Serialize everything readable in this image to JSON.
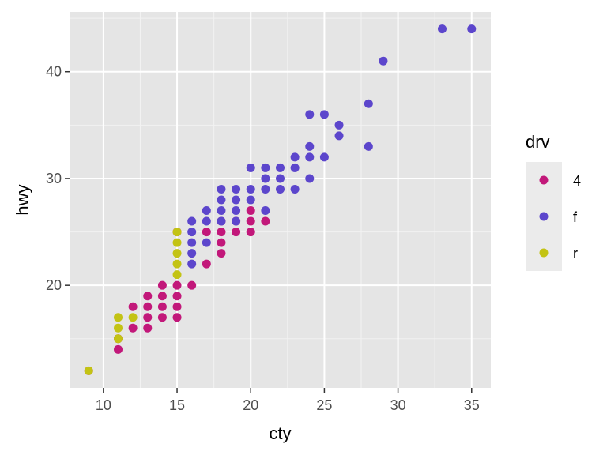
{
  "chart_data": {
    "type": "scatter",
    "title": "",
    "xlabel": "cty",
    "ylabel": "hwy",
    "xlim": [
      7.7,
      36.3
    ],
    "ylim": [
      10.4,
      45.6
    ],
    "x_ticks": [
      10,
      15,
      20,
      25,
      30,
      35
    ],
    "y_ticks": [
      20,
      30,
      40
    ],
    "grid": true,
    "legend": {
      "title": "drv",
      "position": "right",
      "entries": [
        "4",
        "f",
        "r"
      ]
    },
    "colors": {
      "4": "#C2187A",
      "f": "#5C46CC",
      "r": "#C3C314"
    },
    "series": [
      {
        "name": "4",
        "points": [
          [
            9,
            12
          ],
          [
            11,
            14
          ],
          [
            11,
            15
          ],
          [
            12,
            16
          ],
          [
            12,
            18
          ],
          [
            13,
            16
          ],
          [
            13,
            17
          ],
          [
            13,
            18
          ],
          [
            13,
            19
          ],
          [
            14,
            17
          ],
          [
            14,
            18
          ],
          [
            14,
            19
          ],
          [
            14,
            20
          ],
          [
            15,
            17
          ],
          [
            15,
            18
          ],
          [
            15,
            19
          ],
          [
            15,
            20
          ],
          [
            15,
            25
          ],
          [
            16,
            20
          ],
          [
            17,
            22
          ],
          [
            17,
            25
          ],
          [
            18,
            23
          ],
          [
            18,
            24
          ],
          [
            18,
            25
          ],
          [
            18,
            26
          ],
          [
            19,
            25
          ],
          [
            19,
            26
          ],
          [
            20,
            25
          ],
          [
            20,
            26
          ],
          [
            20,
            27
          ],
          [
            21,
            26
          ]
        ]
      },
      {
        "name": "f",
        "points": [
          [
            16,
            22
          ],
          [
            16,
            23
          ],
          [
            16,
            24
          ],
          [
            16,
            25
          ],
          [
            16,
            26
          ],
          [
            17,
            24
          ],
          [
            17,
            26
          ],
          [
            17,
            27
          ],
          [
            18,
            26
          ],
          [
            18,
            27
          ],
          [
            18,
            28
          ],
          [
            18,
            29
          ],
          [
            19,
            26
          ],
          [
            19,
            27
          ],
          [
            19,
            28
          ],
          [
            19,
            29
          ],
          [
            20,
            28
          ],
          [
            20,
            29
          ],
          [
            20,
            31
          ],
          [
            21,
            27
          ],
          [
            21,
            29
          ],
          [
            21,
            30
          ],
          [
            21,
            31
          ],
          [
            22,
            29
          ],
          [
            22,
            30
          ],
          [
            22,
            31
          ],
          [
            23,
            29
          ],
          [
            23,
            31
          ],
          [
            23,
            32
          ],
          [
            24,
            30
          ],
          [
            24,
            32
          ],
          [
            24,
            33
          ],
          [
            24,
            36
          ],
          [
            25,
            32
          ],
          [
            25,
            36
          ],
          [
            26,
            34
          ],
          [
            26,
            35
          ],
          [
            28,
            33
          ],
          [
            28,
            37
          ],
          [
            29,
            41
          ],
          [
            33,
            44
          ],
          [
            35,
            44
          ]
        ]
      },
      {
        "name": "r",
        "points": [
          [
            9,
            12
          ],
          [
            11,
            15
          ],
          [
            11,
            16
          ],
          [
            11,
            17
          ],
          [
            12,
            17
          ],
          [
            15,
            21
          ],
          [
            15,
            22
          ],
          [
            15,
            23
          ],
          [
            15,
            24
          ],
          [
            15,
            25
          ]
        ]
      }
    ]
  }
}
